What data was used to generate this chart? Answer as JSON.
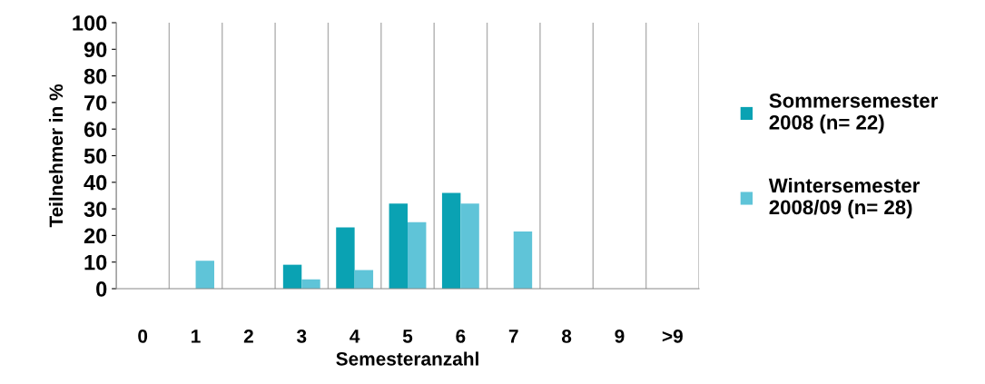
{
  "chart_data": {
    "type": "bar",
    "xlabel": "Semesteranzahl",
    "ylabel": "Teilnehmer in %",
    "categories": [
      "0",
      "1",
      "2",
      "3",
      "4",
      "5",
      "6",
      "7",
      "8",
      "9",
      ">9"
    ],
    "series": [
      {
        "name": "Sommersemester 2008 (n= 22)",
        "color": "#0aa2b3",
        "values": [
          0,
          0,
          0,
          9,
          23,
          32,
          36,
          0,
          0,
          0,
          0
        ]
      },
      {
        "name": "Wintersemester 2008/09 (n= 28)",
        "color": "#5fc4d8",
        "values": [
          0,
          10.5,
          0,
          3.5,
          7,
          25,
          32,
          21.5,
          0,
          0,
          0
        ]
      }
    ],
    "ylim": [
      0,
      100
    ],
    "yticks": [
      0,
      10,
      20,
      30,
      40,
      50,
      60,
      70,
      80,
      90,
      100
    ],
    "grid": "x",
    "legend": "right"
  }
}
